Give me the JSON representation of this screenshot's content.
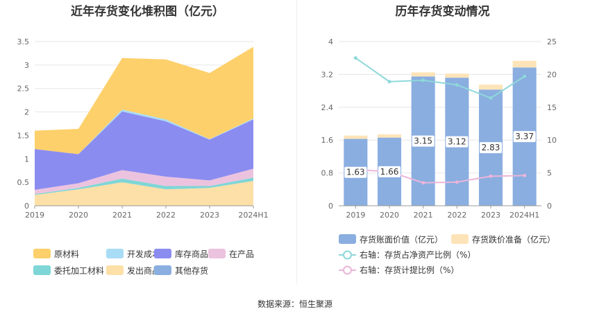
{
  "left_title": "近年存货变化堆积图（亿元）",
  "right_title": "历年存货变动情况",
  "source": "数据来源：恒生聚源",
  "chart_data": [
    {
      "type": "area",
      "title": "近年存货变化堆积图（亿元）",
      "stacked": true,
      "categories": [
        "2019",
        "2020",
        "2021",
        "2022",
        "2023",
        "2024H1"
      ],
      "ylim": [
        0,
        3.5
      ],
      "yticks": [
        "0",
        "0.5",
        "1",
        "1.5",
        "2",
        "2.5",
        "3",
        "3.5"
      ],
      "grid": true,
      "legend_position": "bottom",
      "series": [
        {
          "name": "发出商品",
          "color": "#fddfa8",
          "values": [
            0.23,
            0.35,
            0.5,
            0.35,
            0.38,
            0.53
          ]
        },
        {
          "name": "委托加工材料",
          "color": "#7fd6d6",
          "values": [
            0.02,
            0.03,
            0.08,
            0.07,
            0.04,
            0.07
          ]
        },
        {
          "name": "在产品",
          "color": "#ecc3df",
          "values": [
            0.09,
            0.1,
            0.18,
            0.2,
            0.12,
            0.19
          ]
        },
        {
          "name": "库存商品",
          "color": "#8b8cf0",
          "values": [
            0.87,
            0.62,
            1.25,
            1.18,
            0.87,
            1.05
          ]
        },
        {
          "name": "开发成本",
          "color": "#a9dcf5",
          "values": [
            0,
            0,
            0.04,
            0.04,
            0.01,
            0.02
          ]
        },
        {
          "name": "原材料",
          "color": "#fdd06b",
          "values": [
            0.39,
            0.54,
            1.1,
            1.28,
            1.41,
            1.53
          ]
        },
        {
          "name": "其他存货",
          "color": "#8aaee0",
          "values": [
            0,
            0,
            0,
            0,
            0,
            0
          ]
        }
      ],
      "legend_order": [
        "原材料",
        "开发成本",
        "库存商品",
        "在产品",
        "委托加工材料",
        "发出商品",
        "其他存货"
      ]
    },
    {
      "type": "bar",
      "title": "历年存货变动情况",
      "stacked": true,
      "categories": [
        "2019",
        "2020",
        "2021",
        "2022",
        "2023",
        "2024H1"
      ],
      "ylim": [
        0,
        4
      ],
      "yticks": [
        "0",
        "0.8",
        "1.6",
        "2.4",
        "3.2",
        "4"
      ],
      "y2lim": [
        0,
        25
      ],
      "y2ticks": [
        "0",
        "5",
        "10",
        "15",
        "20",
        "25"
      ],
      "grid": true,
      "legend_position": "bottom",
      "series": [
        {
          "name": "存货账面价值（亿元）",
          "color": "#8aaee0",
          "values": [
            1.63,
            1.66,
            3.15,
            3.12,
            2.83,
            3.37
          ],
          "labels": [
            "1.63",
            "1.66",
            "3.15",
            "3.12",
            "2.83",
            "3.37"
          ]
        },
        {
          "name": "存货跌价准备（亿元）",
          "color": "#fde4b8",
          "values": [
            0.08,
            0.08,
            0.1,
            0.1,
            0.12,
            0.16
          ]
        }
      ],
      "lines": [
        {
          "name": "右轴：存货占净资产比例（%）",
          "color": "#8ed8da",
          "values": [
            22.5,
            18.9,
            19.1,
            18.4,
            16.4,
            19.7
          ]
        },
        {
          "name": "右轴：存货计提比例（%）",
          "color": "#ebb5d9",
          "values": [
            5.5,
            5.2,
            3.5,
            3.6,
            4.5,
            4.6
          ]
        }
      ]
    }
  ]
}
